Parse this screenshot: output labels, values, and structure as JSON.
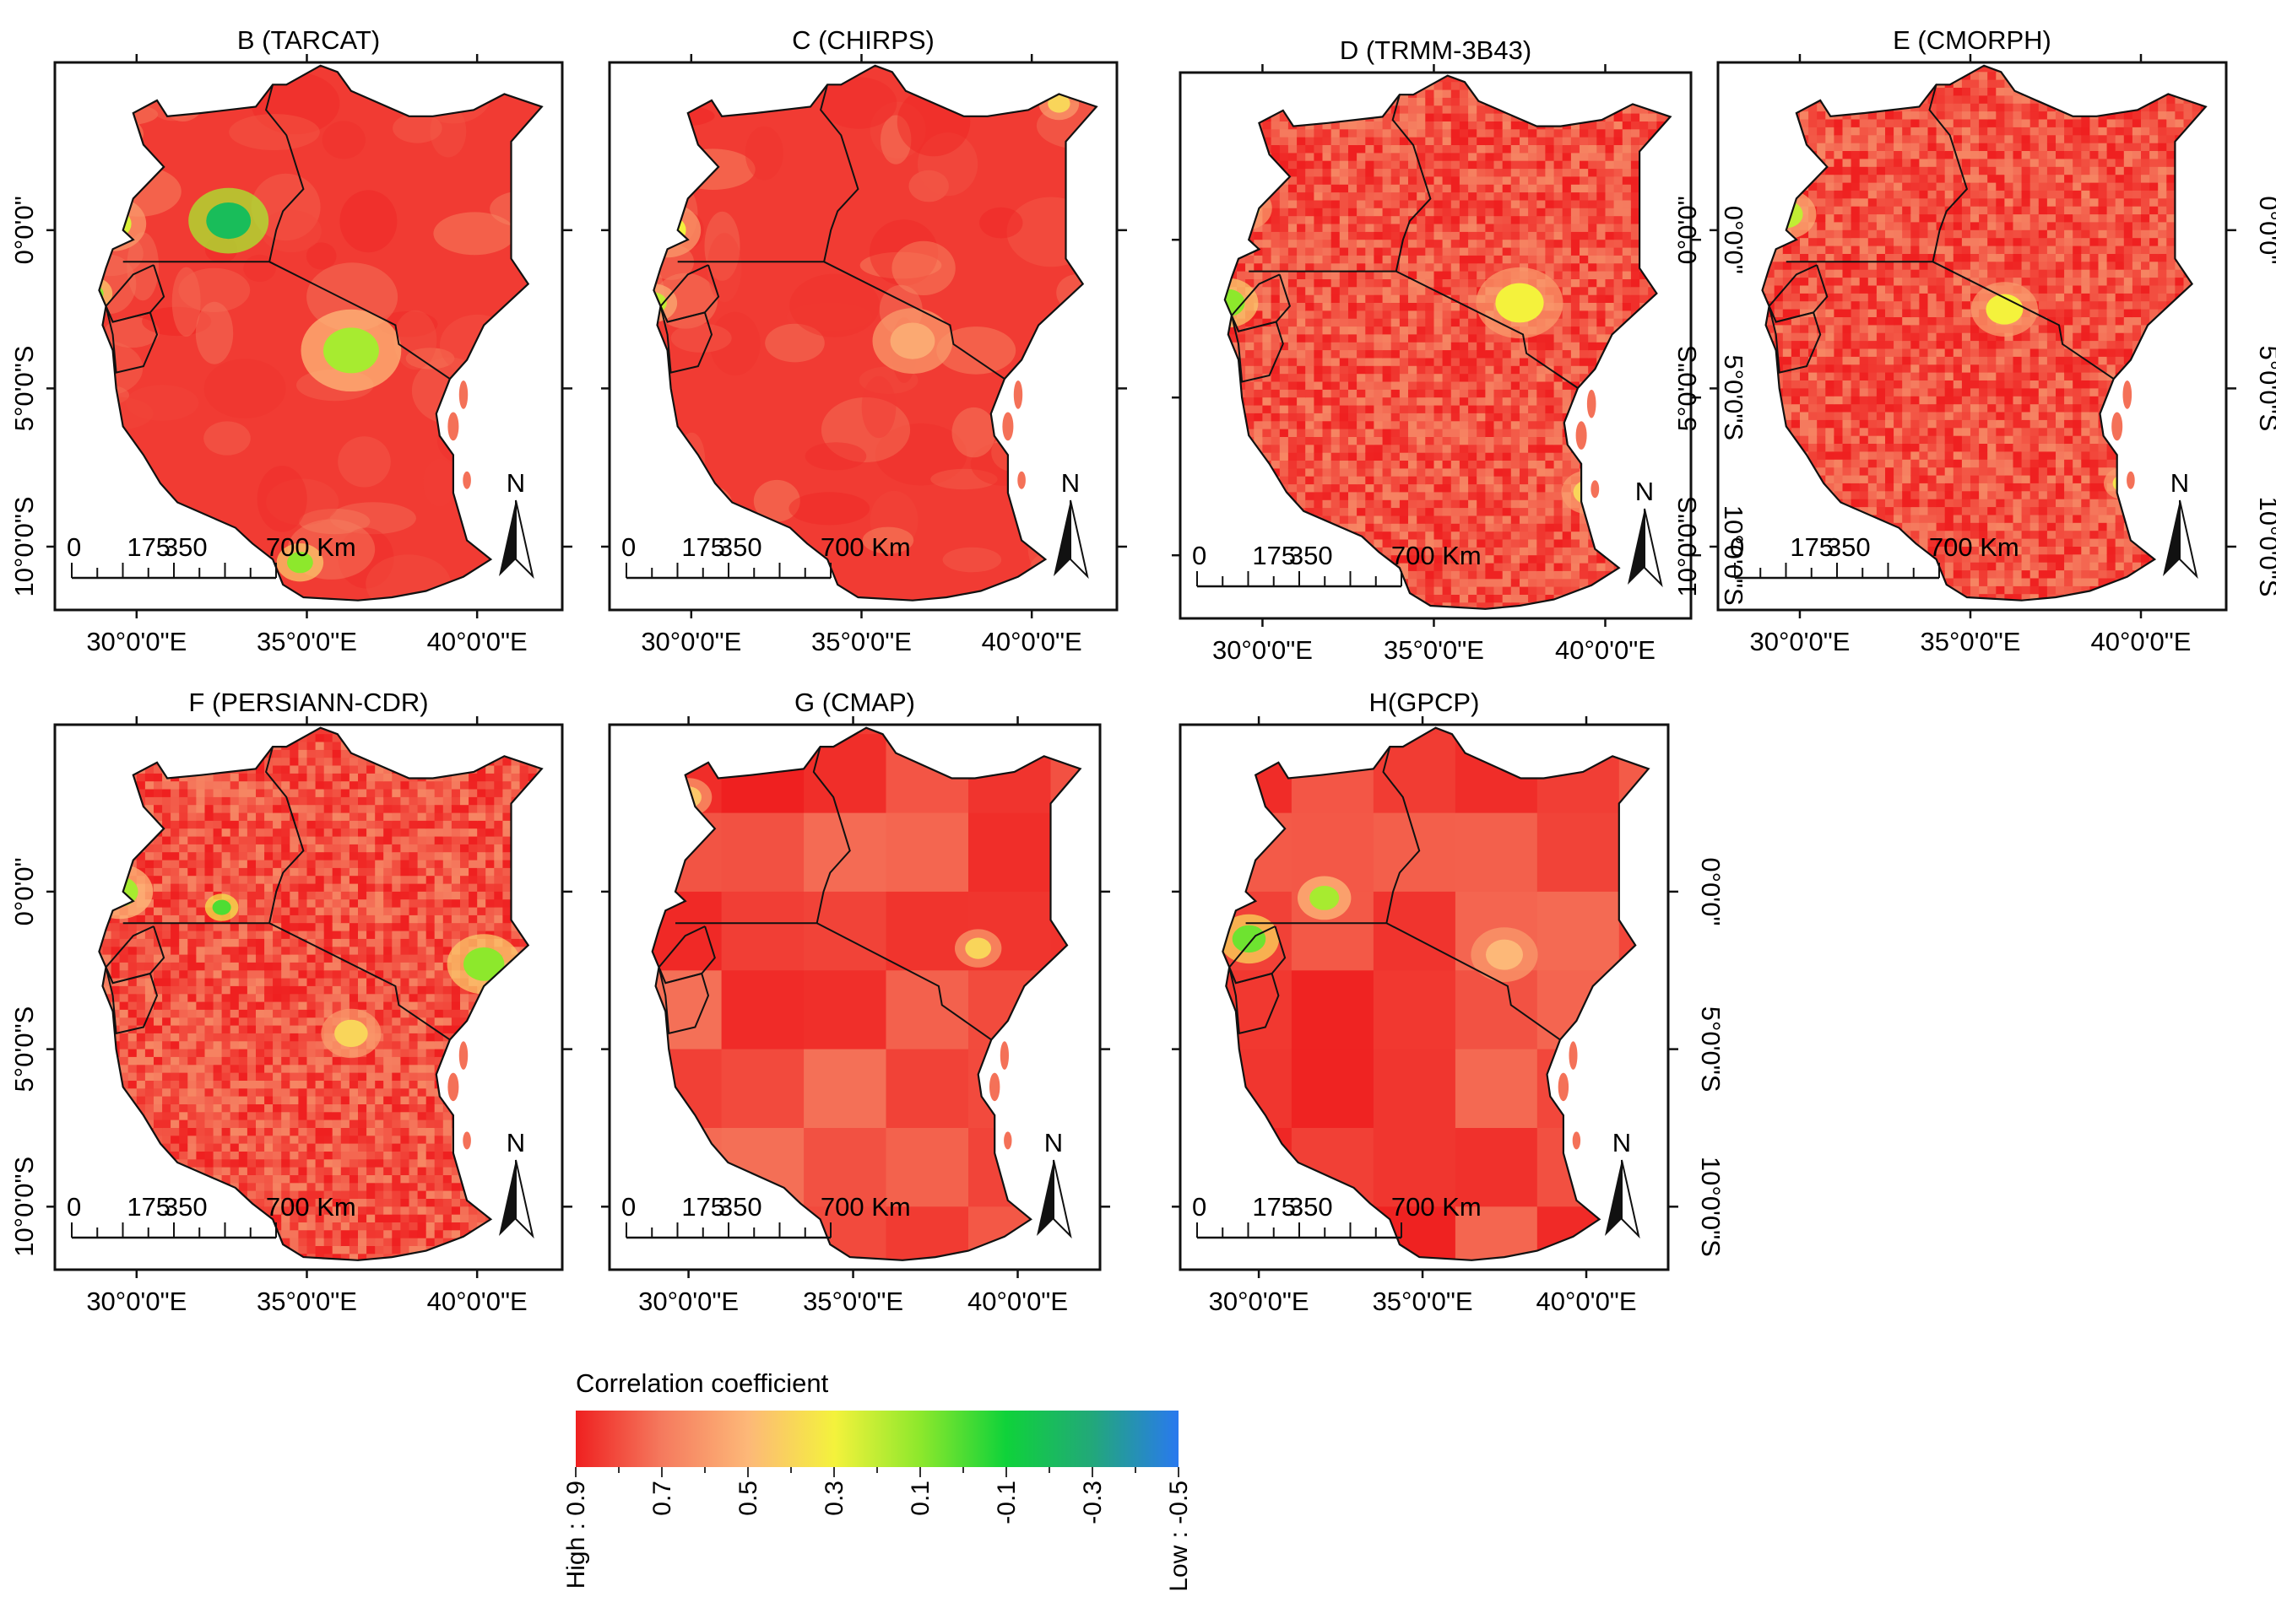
{
  "figure": {
    "panels": [
      {
        "title": "B (TARCAT)",
        "scale_labels": [
          "0",
          "175",
          "350",
          "700 Km"
        ],
        "north": "N",
        "pattern": "smooth",
        "hotspots": [
          {
            "lon": 32.7,
            "lat": 0.3,
            "value": -0.2,
            "size": 1.2
          },
          {
            "lon": 36.3,
            "lat": -3.8,
            "value": 0.15,
            "size": 1.5
          },
          {
            "lon": 29.3,
            "lat": 0.2,
            "value": 0.25,
            "size": 1.0
          },
          {
            "lon": 34.8,
            "lat": -10.5,
            "value": 0.1,
            "size": 0.7
          },
          {
            "lon": 28.7,
            "lat": -2.0,
            "value": 0.1,
            "size": 0.6
          }
        ]
      },
      {
        "title": "C (CHIRPS)",
        "scale_labels": [
          "0",
          "175",
          "350",
          "700 Km"
        ],
        "north": "N",
        "pattern": "smooth",
        "hotspots": [
          {
            "lon": 29.3,
            "lat": 0.0,
            "value": 0.3,
            "size": 1.0
          },
          {
            "lon": 28.9,
            "lat": -2.3,
            "value": 0.2,
            "size": 0.7
          },
          {
            "lon": 36.5,
            "lat": -3.5,
            "value": 0.55,
            "size": 1.2
          },
          {
            "lon": 40.8,
            "lat": 4.0,
            "value": 0.4,
            "size": 0.6
          }
        ]
      },
      {
        "title": "D (TRMM-3B43)",
        "scale_labels": [
          "0",
          "175",
          "350",
          "700 Km"
        ],
        "north": "N",
        "pattern": "blocky",
        "hotspots": [
          {
            "lon": 29.0,
            "lat": -2.0,
            "value": 0.1,
            "size": 0.9
          },
          {
            "lon": 37.5,
            "lat": -2.0,
            "value": 0.3,
            "size": 1.3
          },
          {
            "lon": 29.5,
            "lat": 1.0,
            "value": 0.35,
            "size": 0.8
          },
          {
            "lon": 39.5,
            "lat": -8.0,
            "value": 0.4,
            "size": 0.8
          }
        ]
      },
      {
        "title": "E (CMORPH)",
        "scale_labels": [
          "0",
          "175",
          "350",
          "700 Km"
        ],
        "north": "N",
        "pattern": "blocky",
        "hotspots": [
          {
            "lon": 29.6,
            "lat": 0.5,
            "value": 0.2,
            "size": 0.9
          },
          {
            "lon": 36.0,
            "lat": -2.5,
            "value": 0.3,
            "size": 1.0
          },
          {
            "lon": 40.5,
            "lat": -5.5,
            "value": 0.35,
            "size": 0.6
          },
          {
            "lon": 39.5,
            "lat": -8.0,
            "value": 0.35,
            "size": 0.6
          }
        ]
      },
      {
        "title": "F (PERSIANN-CDR)",
        "scale_labels": [
          "0",
          "175",
          "350",
          "700 Km"
        ],
        "north": "N",
        "pattern": "blocky",
        "hotspots": [
          {
            "lon": 29.5,
            "lat": 0.0,
            "value": 0.15,
            "size": 1.0
          },
          {
            "lon": 40.2,
            "lat": -2.3,
            "value": 0.1,
            "size": 1.1
          },
          {
            "lon": 32.5,
            "lat": -0.5,
            "value": 0.0,
            "size": 0.5
          },
          {
            "lon": 36.3,
            "lat": -4.5,
            "value": 0.4,
            "size": 0.9
          }
        ]
      },
      {
        "title": "G (CMAP)",
        "scale_labels": [
          "0",
          "175",
          "350",
          "700 Km"
        ],
        "north": "N",
        "pattern": "coarse",
        "hotspots": [
          {
            "lon": 30.0,
            "lat": 3.0,
            "value": 0.45,
            "size": 0.7
          },
          {
            "lon": 38.8,
            "lat": -1.8,
            "value": 0.4,
            "size": 0.7
          }
        ]
      },
      {
        "title": "H(GPCP)",
        "scale_labels": [
          "0",
          "175",
          "350",
          "700 Km"
        ],
        "north": "N",
        "pattern": "coarse",
        "hotspots": [
          {
            "lon": 29.7,
            "lat": -1.5,
            "value": 0.05,
            "size": 0.9
          },
          {
            "lon": 32.0,
            "lat": -0.2,
            "value": 0.15,
            "size": 0.8
          },
          {
            "lon": 37.5,
            "lat": -2.0,
            "value": 0.5,
            "size": 1.0
          }
        ]
      }
    ],
    "x_ticks": [
      "30°0'0\"E",
      "35°0'0\"E",
      "40°0'0\"E"
    ],
    "y_ticks": [
      "0°0'0\"",
      "5°0'0\"S",
      "10°0'0\"S"
    ],
    "x_tick_lons": [
      30,
      35,
      40
    ],
    "y_tick_lats": [
      0,
      -5,
      -10
    ],
    "legend": {
      "title": "Correlation coefficient",
      "labels": [
        "High : 0.9",
        "0.7",
        "0.5",
        "0.3",
        "0.1",
        "-0.1",
        "-0.3",
        "Low : -0.5"
      ],
      "high_value": 0.9,
      "low_value": -0.5,
      "colors": [
        "#ef2020",
        "#f57a5e",
        "#fdb878",
        "#f4f23c",
        "#8de82c",
        "#0fd23a",
        "#22a87a",
        "#2979ef"
      ]
    }
  }
}
